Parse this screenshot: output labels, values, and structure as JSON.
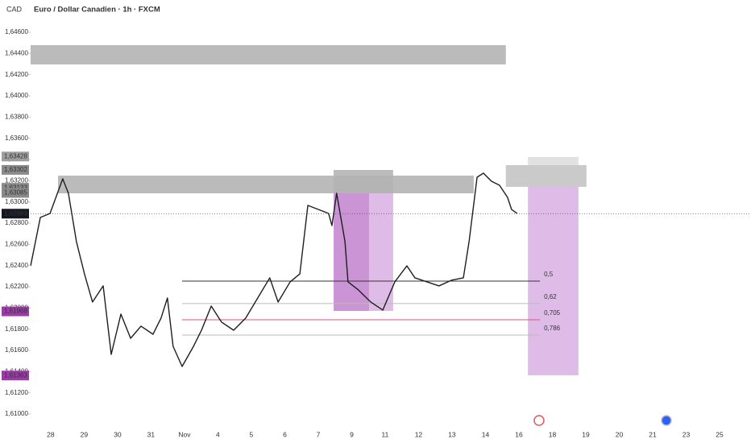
{
  "header": {
    "currency": "CAD",
    "title": "Euro / Dollar Canadien · 1h · FXCM"
  },
  "chart_data": {
    "type": "line",
    "color": "#1e1e1e",
    "x": [
      -0.6,
      -0.31,
      -0.02,
      0.36,
      0.53,
      0.77,
      1.01,
      1.25,
      1.57,
      1.81,
      2.1,
      2.39,
      2.7,
      3.06,
      3.3,
      3.49,
      3.66,
      3.93,
      4.27,
      4.51,
      4.8,
      5.11,
      5.47,
      5.83,
      6.19,
      6.55,
      6.8,
      7.16,
      7.45,
      7.69,
      8.0,
      8.31,
      8.41,
      8.55,
      8.8,
      8.89,
      9.2,
      9.57,
      9.93,
      10.29,
      10.65,
      10.89,
      11.25,
      11.61,
      11.98,
      12.34,
      12.51,
      12.75,
      12.94,
      13.18,
      13.42,
      13.66,
      13.78,
      13.95
    ],
    "values": [
      1.62397,
      1.62853,
      1.62891,
      1.63218,
      1.63081,
      1.62625,
      1.62321,
      1.62056,
      1.62208,
      1.61562,
      1.61942,
      1.61714,
      1.61828,
      1.61752,
      1.61904,
      1.62094,
      1.61638,
      1.61448,
      1.61638,
      1.6179,
      1.62018,
      1.61866,
      1.6179,
      1.61904,
      1.62094,
      1.62284,
      1.62056,
      1.62246,
      1.62321,
      1.62967,
      1.62929,
      1.62891,
      1.62777,
      1.63081,
      1.62625,
      1.62246,
      1.6217,
      1.62056,
      1.6198,
      1.62246,
      1.62397,
      1.62284,
      1.62246,
      1.62208,
      1.62261,
      1.62284,
      1.62625,
      1.63233,
      1.63271,
      1.63195,
      1.63157,
      1.63043,
      1.62929,
      1.62891
    ],
    "xlim": [
      -0.6,
      20.94
    ],
    "ylim": [
      1.61,
      1.646
    ],
    "xticks": [
      {
        "value": 0,
        "label": "28"
      },
      {
        "value": 1,
        "label": "29"
      },
      {
        "value": 2,
        "label": "30"
      },
      {
        "value": 3,
        "label": "31"
      },
      {
        "value": 4,
        "label": "Nov"
      },
      {
        "value": 5,
        "label": "4"
      },
      {
        "value": 6,
        "label": "5"
      },
      {
        "value": 7,
        "label": "6"
      },
      {
        "value": 8,
        "label": "7"
      },
      {
        "value": 9,
        "label": "9"
      },
      {
        "value": 10,
        "label": "11"
      },
      {
        "value": 11,
        "label": "12"
      },
      {
        "value": 12,
        "label": "13"
      },
      {
        "value": 13,
        "label": "14"
      },
      {
        "value": 14,
        "label": "16"
      },
      {
        "value": 15,
        "label": "18"
      },
      {
        "value": 16,
        "label": "19"
      },
      {
        "value": 17,
        "label": "20"
      },
      {
        "value": 18,
        "label": "21"
      },
      {
        "value": 19,
        "label": "23"
      },
      {
        "value": 20,
        "label": "25"
      }
    ],
    "yticks": [
      {
        "value": 1.646,
        "label": "1,64600"
      },
      {
        "value": 1.644,
        "label": "1,64400"
      },
      {
        "value": 1.642,
        "label": "1,64200"
      },
      {
        "value": 1.64,
        "label": "1,64000"
      },
      {
        "value": 1.638,
        "label": "1,63800"
      },
      {
        "value": 1.636,
        "label": "1,63600"
      },
      {
        "value": 1.634,
        "label": "1,63400"
      },
      {
        "value": 1.632,
        "label": "1,63200"
      },
      {
        "value": 1.63,
        "label": "1,63000"
      },
      {
        "value": 1.628,
        "label": "1,62800"
      },
      {
        "value": 1.626,
        "label": "1,62600"
      },
      {
        "value": 1.624,
        "label": "1,62400"
      },
      {
        "value": 1.622,
        "label": "1,62200"
      },
      {
        "value": 1.62,
        "label": "1,62000"
      },
      {
        "value": 1.618,
        "label": "1,61800"
      },
      {
        "value": 1.616,
        "label": "1,61600"
      },
      {
        "value": 1.614,
        "label": "1,61400"
      },
      {
        "value": 1.612,
        "label": "1,61200"
      },
      {
        "value": 1.61,
        "label": "1,61000"
      }
    ],
    "zones": [
      {
        "x": [
          -0.6,
          13.61
        ],
        "y": [
          1.64296,
          1.64478
        ],
        "color": "#b4b4b4"
      },
      {
        "x": [
          0.22,
          12.65
        ],
        "y": [
          1.63081,
          1.63248
        ],
        "color": "#b4b4b4"
      },
      {
        "x": [
          8.46,
          10.24
        ],
        "y": [
          1.63081,
          1.63301
        ],
        "color": "#b4b4b4"
      },
      {
        "x": [
          8.46,
          9.52
        ],
        "y": [
          1.61972,
          1.63081
        ],
        "color": "#c58ad0"
      },
      {
        "x": [
          9.52,
          10.24
        ],
        "y": [
          1.61972,
          1.63081
        ],
        "color": "#dcb4e4"
      },
      {
        "x": [
          13.61,
          16.02
        ],
        "y": [
          1.63142,
          1.63347
        ],
        "color": "#c4c4c4"
      },
      {
        "x": [
          14.27,
          15.78
        ],
        "y": [
          1.63347,
          1.63423
        ],
        "color": "#dedede"
      },
      {
        "x": [
          14.27,
          15.78
        ],
        "y": [
          1.61365,
          1.63142
        ],
        "color": "#dcb4e4"
      }
    ],
    "levels": [
      {
        "value": 1.62253,
        "label": "0,5",
        "color": "#333333",
        "x": [
          3.93,
          14.63
        ]
      },
      {
        "value": 1.62041,
        "label": "0,62",
        "color": "#bbbbbb",
        "x": [
          3.93,
          14.63
        ]
      },
      {
        "value": 1.61889,
        "label": "0,705",
        "color": "#e0507a",
        "x": [
          3.93,
          14.63
        ]
      },
      {
        "value": 1.61744,
        "label": "0,786",
        "color": "#bbbbbb",
        "x": [
          3.93,
          14.63
        ]
      }
    ],
    "price_tags": [
      {
        "value": 1.63428,
        "label": "1,63428",
        "color": "#9e9e9e"
      },
      {
        "value": 1.63302,
        "label": "1,63302",
        "color": "#8a8a8a"
      },
      {
        "value": 1.63133,
        "label": "1,63133",
        "color": "#8a8a8a"
      },
      {
        "value": 1.63085,
        "label": "1,63085",
        "color": "#8a8a8a"
      },
      {
        "value": 1.61968,
        "label": "1,61968",
        "color": "#9c3aa8"
      },
      {
        "value": 1.61363,
        "label": "1,61363",
        "color": "#9c3aa8"
      }
    ],
    "last_price": {
      "value": 1.62889,
      "label": "1,62889",
      "color": "#131722"
    }
  }
}
